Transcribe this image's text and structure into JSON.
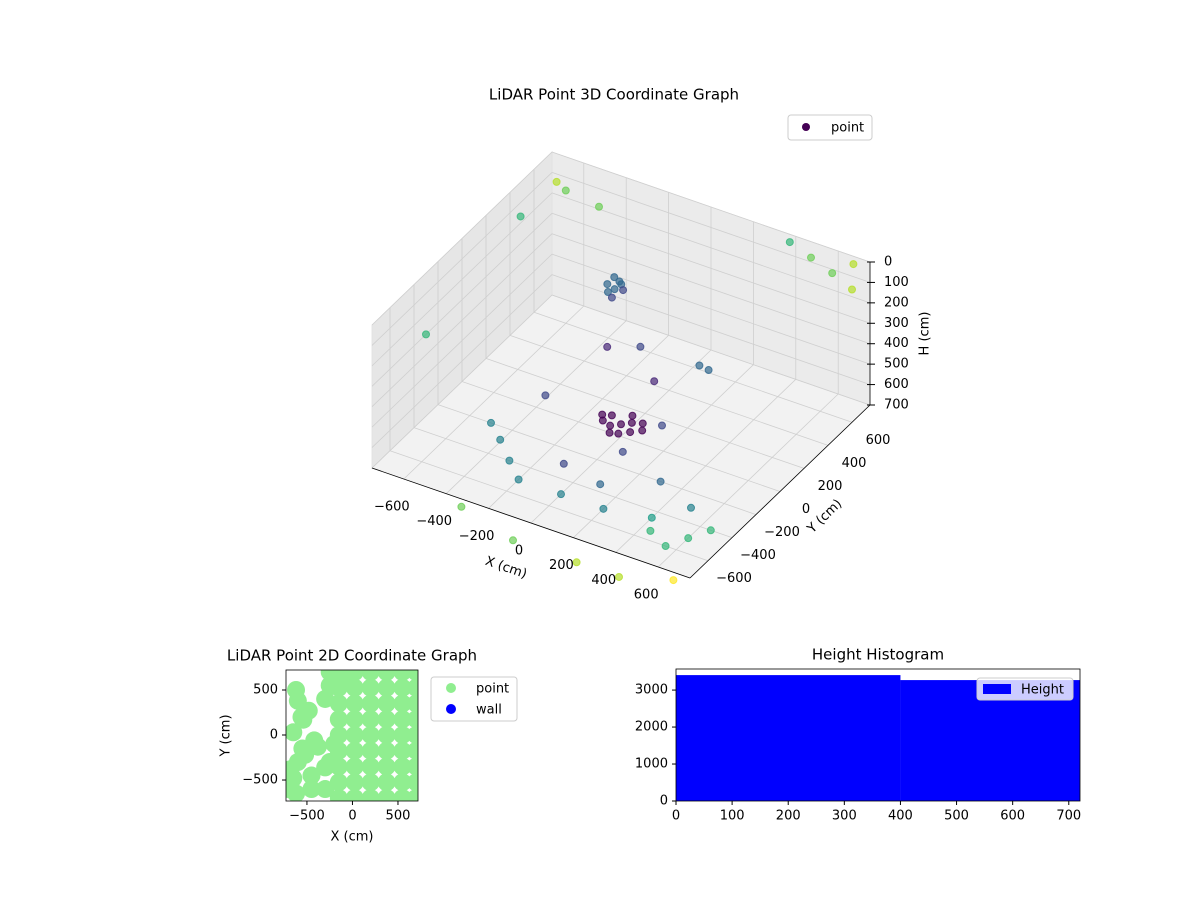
{
  "chart_data": [
    {
      "type": "scatter3d",
      "title": "LiDAR Point 3D Coordinate Graph",
      "xlabel": "X (cm)",
      "ylabel": "Y (cm)",
      "zlabel": "H (cm)",
      "xlim": [
        -750,
        750
      ],
      "ylim": [
        -750,
        750
      ],
      "zlim": [
        0,
        700
      ],
      "z_inverted": true,
      "xticks": [
        {
          "value": -600,
          "label": "−600"
        },
        {
          "value": -400,
          "label": "−400"
        },
        {
          "value": -200,
          "label": "−200"
        },
        0,
        200,
        400,
        600
      ],
      "yticks": [
        {
          "value": -600,
          "label": "−600"
        },
        {
          "value": -400,
          "label": "−400"
        },
        {
          "value": -200,
          "label": "−200"
        },
        0,
        200,
        400,
        600
      ],
      "zticks": [
        0,
        100,
        200,
        300,
        400,
        500,
        600,
        700
      ],
      "cmap": "viridis",
      "grid": true,
      "legend": "upper right",
      "series": [
        {
          "name": "point",
          "color": "#440154",
          "x": [
            -200,
            -180,
            -220,
            -160,
            -240,
            -200,
            -190,
            -230,
            0,
            40,
            -40,
            60,
            -60,
            20,
            -20,
            80,
            -80,
            10,
            100,
            -100,
            100,
            -150,
            250,
            300,
            -300,
            200,
            -50,
            150,
            -500,
            -400,
            -300,
            -200,
            0,
            200,
            400,
            500,
            300,
            -100,
            100,
            450,
            550,
            600,
            650,
            300,
            500,
            700,
            0,
            -300,
            -700,
            -600,
            400,
            500,
            600,
            700,
            -750,
            -700,
            -500,
            750
          ],
          "y": [
            300,
            320,
            280,
            300,
            310,
            340,
            260,
            350,
            0,
            20,
            -20,
            -30,
            30,
            60,
            -60,
            40,
            -10,
            -40,
            0,
            20,
            100,
            150,
            -100,
            200,
            -100,
            300,
            250,
            -250,
            -200,
            -300,
            -400,
            -500,
            -500,
            -500,
            -450,
            -300,
            -200,
            -300,
            -350,
            -550,
            -600,
            -500,
            -400,
            -900,
            -900,
            -800,
            -900,
            -800,
            400,
            600,
            700,
            700,
            700,
            700,
            -300,
            700,
            700,
            600
          ],
          "z": [
            220,
            200,
            230,
            210,
            215,
            205,
            235,
            200,
            640,
            630,
            650,
            640,
            635,
            625,
            655,
            630,
            645,
            660,
            635,
            640,
            450,
            400,
            500,
            380,
            550,
            450,
            420,
            580,
            700,
            690,
            700,
            700,
            700,
            700,
            700,
            700,
            700,
            700,
            700,
            690,
            700,
            700,
            700,
            700,
            700,
            700,
            700,
            700,
            100,
            50,
            0,
            40,
            80,
            0,
            300,
            100,
            150,
            50
          ]
        }
      ]
    },
    {
      "type": "scatter",
      "title": "LiDAR Point 2D Coordinate Graph",
      "xlabel": "X (cm)",
      "ylabel": "Y (cm)",
      "xlim": [
        -730,
        720
      ],
      "ylim": [
        -733,
        722
      ],
      "xticks": [
        {
          "value": -500,
          "label": "−500"
        },
        0,
        500
      ],
      "yticks": [
        {
          "value": -500,
          "label": "−500"
        },
        0,
        500
      ],
      "legend": "outside right",
      "series": [
        {
          "name": "point",
          "color": "#90ee90",
          "x": [
            -150,
            25,
            200,
            375,
            550,
            700,
            -150,
            25,
            200,
            375,
            550,
            700,
            -150,
            25,
            200,
            375,
            550,
            700,
            -150,
            25,
            200,
            375,
            550,
            700,
            -150,
            25,
            200,
            375,
            550,
            700,
            -150,
            25,
            200,
            375,
            550,
            700,
            -150,
            25,
            200,
            375,
            550,
            700,
            -150,
            25,
            200,
            375,
            550,
            700,
            -150,
            25,
            200,
            375,
            550,
            700,
            -620,
            -600,
            -560,
            -540,
            -480,
            -650,
            -550,
            -420,
            -380,
            -520,
            -600,
            -680,
            -650,
            -700,
            -620,
            -300,
            -250,
            -100,
            -450,
            -300,
            -450,
            -250,
            -200,
            -300,
            -250
          ],
          "y": [
            -700,
            -700,
            -700,
            -700,
            -700,
            -700,
            -525,
            -525,
            -525,
            -525,
            -525,
            -525,
            -350,
            -350,
            -350,
            -350,
            -350,
            -350,
            -175,
            -175,
            -175,
            -175,
            -175,
            -175,
            0,
            0,
            0,
            0,
            0,
            0,
            175,
            175,
            175,
            175,
            175,
            175,
            350,
            350,
            350,
            350,
            350,
            350,
            525,
            525,
            525,
            525,
            525,
            525,
            700,
            700,
            700,
            700,
            700,
            700,
            500,
            380,
            200,
            170,
            270,
            30,
            -150,
            -60,
            -130,
            -220,
            -300,
            -380,
            -480,
            -600,
            -650,
            -360,
            700,
            650,
            -600,
            -600,
            -450,
            -300,
            -100,
            400,
            550
          ]
        },
        {
          "name": "wall",
          "color": "#0000ff",
          "x": [],
          "y": []
        }
      ]
    },
    {
      "type": "histogram",
      "title": "Height Histogram",
      "label": "Height",
      "color": "#0000ff",
      "bins": [
        0,
        400,
        720
      ],
      "values": [
        3405,
        3270
      ],
      "xlim": [
        0,
        720
      ],
      "ylim": [
        0,
        3570
      ],
      "xticks": [
        0,
        100,
        200,
        300,
        400,
        500,
        600,
        700
      ],
      "yticks": [
        0,
        1000,
        2000,
        3000
      ],
      "legend": "upper right"
    }
  ]
}
